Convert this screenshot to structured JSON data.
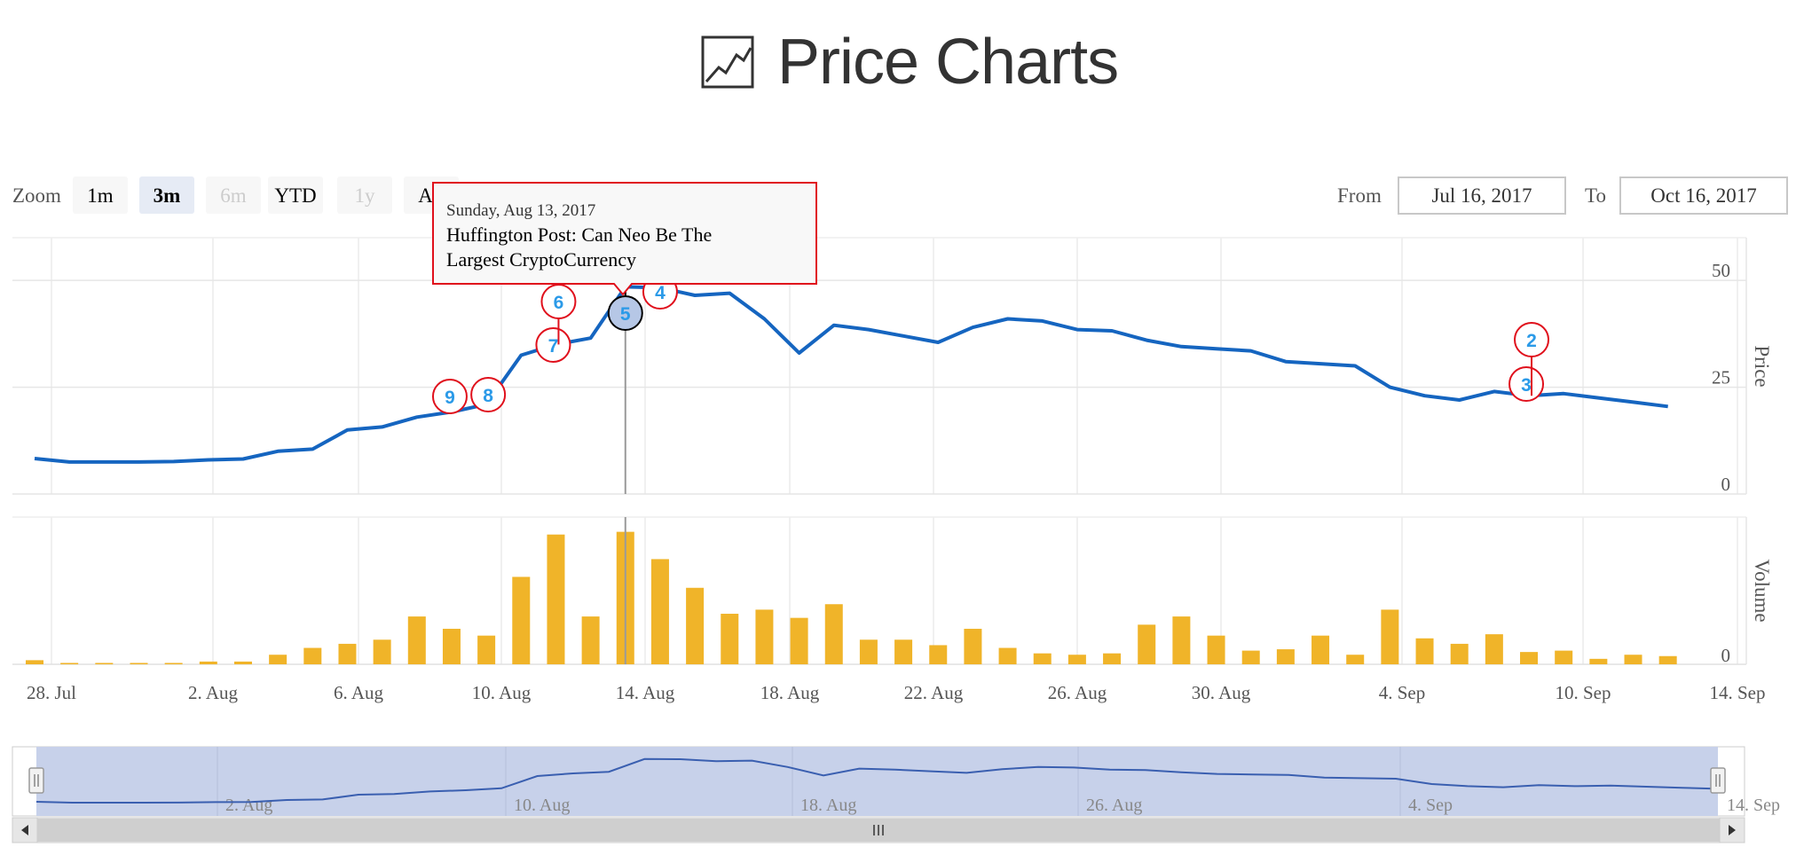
{
  "header": {
    "title": "Price Charts",
    "icon": "line-chart-icon"
  },
  "zoom": {
    "label": "Zoom",
    "buttons": [
      {
        "label": "1m",
        "state": "normal"
      },
      {
        "label": "3m",
        "state": "selected"
      },
      {
        "label": "6m",
        "state": "disabled"
      },
      {
        "label": "YTD",
        "state": "normal"
      },
      {
        "label": "1y",
        "state": "disabled"
      },
      {
        "label": "All",
        "state": "normal"
      }
    ]
  },
  "range": {
    "from_label": "From",
    "from_value": "Jul 16, 2017",
    "to_label": "To",
    "to_value": "Oct 16, 2017"
  },
  "tooltip": {
    "date": "Sunday, Aug 13, 2017",
    "line1": "Huffington Post: Can Neo Be The",
    "line2": "Largest CryptoCurrency"
  },
  "colors": {
    "price_line": "#1565c0",
    "volume_bar": "#f0b429",
    "flag_border": "#e0101c",
    "flag_text": "#2b9ae8",
    "navigator_fill": "#c7d1ea",
    "navigator_line": "#3a5fb0"
  },
  "chart_data": {
    "type": "line",
    "x_axis": {
      "start": "2017-07-27",
      "end": "2017-09-14",
      "tick_labels": [
        "28. Jul",
        "2. Aug",
        "6. Aug",
        "10. Aug",
        "14. Aug",
        "18. Aug",
        "22. Aug",
        "26. Aug",
        "30. Aug",
        "4. Sep",
        "10. Sep",
        "14. Sep"
      ]
    },
    "price": {
      "ylabel": "Price",
      "ylim": [
        0,
        60
      ],
      "yticks": [
        0,
        25,
        50
      ],
      "points": [
        [
          "2017-07-27",
          8.3
        ],
        [
          "2017-07-28",
          7.5
        ],
        [
          "2017-07-29",
          7.5
        ],
        [
          "2017-07-30",
          7.5
        ],
        [
          "2017-07-31",
          7.6
        ],
        [
          "2017-08-01",
          8.0
        ],
        [
          "2017-08-02",
          8.2
        ],
        [
          "2017-08-03",
          10.0
        ],
        [
          "2017-08-04",
          10.5
        ],
        [
          "2017-08-05",
          15.0
        ],
        [
          "2017-08-06",
          15.7
        ],
        [
          "2017-08-07",
          18.0
        ],
        [
          "2017-08-08",
          19.2
        ],
        [
          "2017-08-09",
          21.0
        ],
        [
          "2017-08-10",
          32.5
        ],
        [
          "2017-08-11",
          35.0
        ],
        [
          "2017-08-12",
          36.5
        ],
        [
          "2017-08-13",
          48.5
        ],
        [
          "2017-08-14",
          48.3
        ],
        [
          "2017-08-15",
          46.5
        ],
        [
          "2017-08-16",
          47.0
        ],
        [
          "2017-08-17",
          41.0
        ],
        [
          "2017-08-18",
          33.0
        ],
        [
          "2017-08-19",
          39.5
        ],
        [
          "2017-08-20",
          38.5
        ],
        [
          "2017-08-21",
          37.0
        ],
        [
          "2017-08-22",
          35.5
        ],
        [
          "2017-08-23",
          39.0
        ],
        [
          "2017-08-24",
          41.0
        ],
        [
          "2017-08-25",
          40.5
        ],
        [
          "2017-08-26",
          38.5
        ],
        [
          "2017-08-27",
          38.2
        ],
        [
          "2017-08-28",
          36.0
        ],
        [
          "2017-08-29",
          34.5
        ],
        [
          "2017-08-30",
          34.0
        ],
        [
          "2017-08-31",
          33.5
        ],
        [
          "2017-09-01",
          31.0
        ],
        [
          "2017-09-02",
          30.5
        ],
        [
          "2017-09-03",
          30.0
        ],
        [
          "2017-09-04",
          25.0
        ],
        [
          "2017-09-05",
          23.0
        ],
        [
          "2017-09-06",
          22.0
        ],
        [
          "2017-09-07",
          24.0
        ],
        [
          "2017-09-08",
          23.0
        ],
        [
          "2017-09-09",
          23.5
        ],
        [
          "2017-09-10",
          22.5
        ],
        [
          "2017-09-11",
          21.5
        ],
        [
          "2017-09-12",
          20.5
        ]
      ]
    },
    "volume": {
      "ylabel": "Volume",
      "ytick_labels": [
        "0"
      ],
      "relative_values": [
        0.03,
        0.01,
        0.01,
        0.01,
        0.01,
        0.02,
        0.02,
        0.07,
        0.12,
        0.15,
        0.18,
        0.35,
        0.26,
        0.21,
        0.64,
        0.95,
        0.35,
        0.97,
        0.77,
        0.56,
        0.37,
        0.4,
        0.34,
        0.44,
        0.18,
        0.18,
        0.14,
        0.26,
        0.12,
        0.08,
        0.07,
        0.08,
        0.29,
        0.35,
        0.21,
        0.1,
        0.11,
        0.21,
        0.07,
        0.4,
        0.19,
        0.15,
        0.22,
        0.09,
        0.1,
        0.04,
        0.07,
        0.06
      ]
    },
    "flags": [
      {
        "label": "9",
        "date": "2017-08-08"
      },
      {
        "label": "8",
        "date": "2017-08-09"
      },
      {
        "label": "7",
        "date": "2017-08-11"
      },
      {
        "label": "6",
        "date": "2017-08-11"
      },
      {
        "label": "5",
        "date": "2017-08-13",
        "selected": true
      },
      {
        "label": "4",
        "date": "2017-08-14"
      },
      {
        "label": "3",
        "date": "2017-09-08"
      },
      {
        "label": "2",
        "date": "2017-09-08"
      }
    ],
    "crosshair_date": "2017-08-13",
    "navigator": {
      "tick_labels": [
        "2. Aug",
        "10. Aug",
        "18. Aug",
        "26. Aug",
        "4. Sep",
        "14. Sep"
      ]
    }
  }
}
